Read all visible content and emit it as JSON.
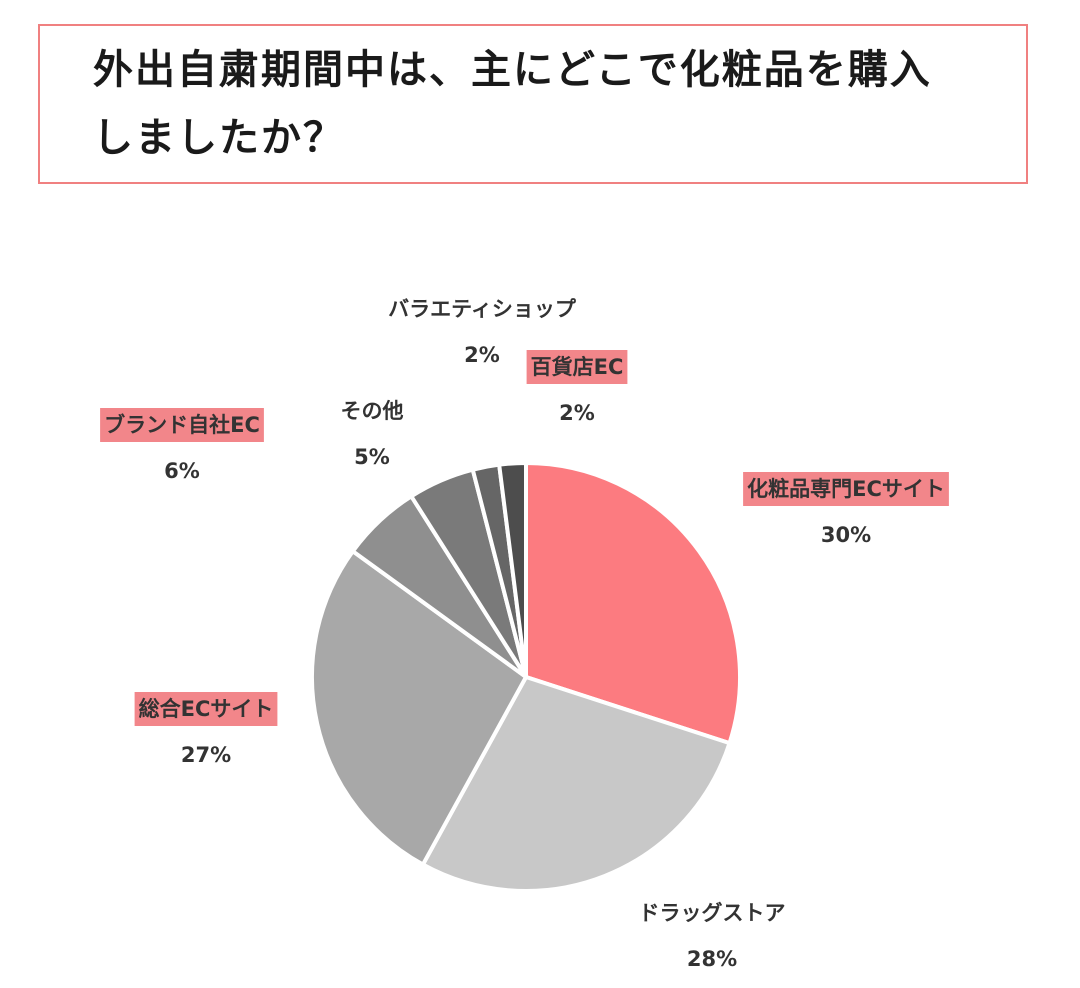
{
  "chart_data": {
    "type": "pie",
    "title": "外出自粛期間中は、主にどこで化粧品を購入しましたか？",
    "slices": [
      {
        "name": "化粧品専門ECサイト",
        "value": 30,
        "value_label": "30%",
        "color": "#fc7b80",
        "highlight": true
      },
      {
        "name": "ドラッグストア",
        "value": 28,
        "value_label": "28%",
        "color": "#c8c8c8",
        "highlight": false
      },
      {
        "name": "総合ECサイト",
        "value": 27,
        "value_label": "27%",
        "color": "#a8a8a8",
        "highlight": true
      },
      {
        "name": "ブランド自社EC",
        "value": 6,
        "value_label": "6%",
        "color": "#8f8f8f",
        "highlight": true
      },
      {
        "name": "その他",
        "value": 5,
        "value_label": "5%",
        "color": "#7a7a7a",
        "highlight": false
      },
      {
        "name": "バラエティショップ",
        "value": 2,
        "value_label": "2%",
        "color": "#666666",
        "highlight": false
      },
      {
        "name": "百貨店EC",
        "value": 2,
        "value_label": "2%",
        "color": "#4d4d4d",
        "highlight": true
      }
    ],
    "label_highlight_color": "#f2868a"
  }
}
